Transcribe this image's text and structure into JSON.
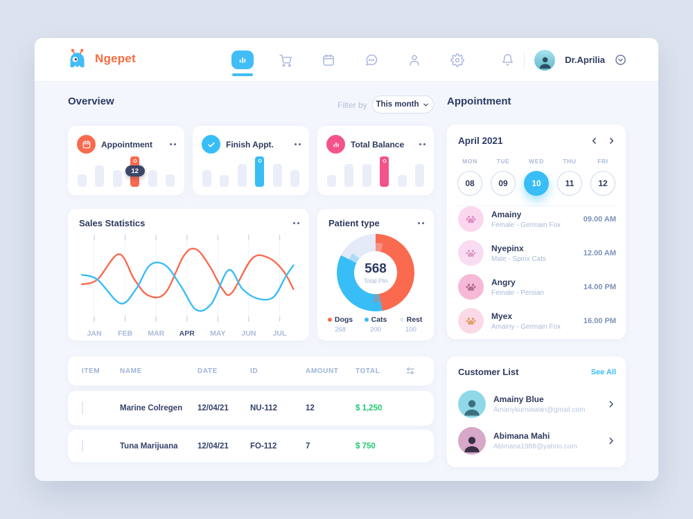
{
  "header": {
    "brand": "Ngepet",
    "nav_items": [
      {
        "name": "dashboard",
        "icon": "chart-bars",
        "active": true
      },
      {
        "name": "shop",
        "icon": "cart",
        "active": false
      },
      {
        "name": "schedule",
        "icon": "calendar",
        "active": false
      },
      {
        "name": "messages",
        "icon": "chat",
        "active": false
      },
      {
        "name": "patients",
        "icon": "user",
        "active": false
      },
      {
        "name": "settings",
        "icon": "gear",
        "active": false
      }
    ],
    "user": {
      "name": "Dr.Aprilia"
    }
  },
  "overview": {
    "title": "Overview",
    "filter_label": "Filter by",
    "filter_value": "This month"
  },
  "stat_cards": [
    {
      "title": "Appointment",
      "icon": "calendar-solid",
      "icon_bg": "#fa6a4e",
      "chart_id": "appointment-bars"
    },
    {
      "title": "Finish Appt.",
      "icon": "check",
      "icon_bg": "#38bdf6",
      "chart_id": "finish-bars"
    },
    {
      "title": "Total Balance",
      "icon": "mini-bars",
      "icon_bg": "#f4538a",
      "chart_id": "balance-bars"
    }
  ],
  "sales_card": {
    "title": "Sales Statistics"
  },
  "patient_card": {
    "title": "Patient type"
  },
  "appointment_panel": {
    "title": "Appointment",
    "month": "April 2021",
    "days": [
      {
        "dow": "MON",
        "date": "08",
        "selected": false
      },
      {
        "dow": "TUE",
        "date": "09",
        "selected": false
      },
      {
        "dow": "WED",
        "date": "10",
        "selected": true
      },
      {
        "dow": "THU",
        "date": "11",
        "selected": false
      },
      {
        "dow": "FRI",
        "date": "12",
        "selected": false
      }
    ],
    "items": [
      {
        "name": "Amainy",
        "detail": "Female - Germain Fox",
        "time": "09.00 AM",
        "avatar_bg": "#fbd7ee",
        "avatar_fg": "#e38cc0"
      },
      {
        "name": "Nyepinx",
        "detail": "Male - Spinx Cats",
        "time": "12.00 AM",
        "avatar_bg": "#f9dcf2",
        "avatar_fg": "#d9a0c6"
      },
      {
        "name": "Angry",
        "detail": "Female - Persian",
        "time": "14.00 PM",
        "avatar_bg": "#f5b8d6",
        "avatar_fg": "#b46e93"
      },
      {
        "name": "Myex",
        "detail": "Amainy - Germain Fox",
        "time": "16.00 PM",
        "avatar_bg": "#fcd9e6",
        "avatar_fg": "#e2a06b"
      }
    ]
  },
  "customer_panel": {
    "title": "Customer List",
    "action": "See All",
    "items": [
      {
        "name": "Amainy Blue",
        "email": "Amanykurniawan@gmail.com",
        "avatar_bg": "#8fd8e8",
        "avatar_fg": "#3d6f7d"
      },
      {
        "name": "Abimana Mahi",
        "email": "Abimana1988@yahoo.com",
        "avatar_bg": "#d8a8c8",
        "avatar_fg": "#3a2f45"
      }
    ]
  },
  "table": {
    "headers": [
      "ITEM",
      "NAME",
      "DATE",
      "ID",
      "AMOUNT",
      "TOTAL"
    ],
    "rows": [
      {
        "item_style": "bottle",
        "name": "Marine Colregen",
        "date": "12/04/21",
        "id": "NU-112",
        "amount": "12",
        "total": "$ 1,250"
      },
      {
        "item_style": "pouch",
        "name": "Tuna Marijuana",
        "date": "12/04/21",
        "id": "FO-112",
        "amount": "7",
        "total": "$ 750"
      }
    ]
  },
  "colors": {
    "accent_blue": "#38bdf6",
    "accent_orange": "#fa6a4e",
    "accent_pink": "#f4538a",
    "green": "#1fc96f",
    "bar_muted": "#e9eef9",
    "rest_segment": "#e4eaf8"
  },
  "chart_data": [
    {
      "id": "appointment-bars",
      "type": "bar",
      "title": "Appointment",
      "values": [
        40,
        70,
        55,
        100,
        55,
        40
      ],
      "highlight_index": 3,
      "highlight_label": "12",
      "color": "#fa6a4e",
      "ylim": [
        0,
        100
      ]
    },
    {
      "id": "finish-bars",
      "type": "bar",
      "title": "Finish Appt.",
      "values": [
        55,
        38,
        75,
        100,
        75,
        55
      ],
      "highlight_index": 3,
      "highlight_label": "",
      "color": "#38bdf6",
      "ylim": [
        0,
        100
      ]
    },
    {
      "id": "balance-bars",
      "type": "bar",
      "title": "Total Balance",
      "values": [
        38,
        75,
        75,
        100,
        38,
        75
      ],
      "highlight_index": 3,
      "highlight_label": "",
      "color": "#f4538a",
      "ylim": [
        0,
        100
      ]
    },
    {
      "id": "sales-line",
      "type": "line",
      "title": "Sales Statistics",
      "x_labels": [
        "JAN",
        "FEB",
        "MAR",
        "APR",
        "MAY",
        "JUN",
        "JUL"
      ],
      "active_label": "APR",
      "note": "decorative smoothed waves, y normalized -1..1, no y axis shown",
      "series": [
        {
          "name": "orange",
          "color": "#fa6a4e",
          "points": [
            [
              -0.4,
              -0.15
            ],
            [
              0.1,
              0
            ],
            [
              0.8,
              0.8
            ],
            [
              1.3,
              0
            ],
            [
              1.75,
              -0.5
            ],
            [
              2.3,
              -0.42
            ],
            [
              2.9,
              0.75
            ],
            [
              3.3,
              0.95
            ],
            [
              3.75,
              0.4
            ],
            [
              4.15,
              -0.3
            ],
            [
              4.45,
              -0.42
            ],
            [
              5.1,
              0.65
            ],
            [
              5.6,
              0.7
            ],
            [
              6.1,
              0.3
            ],
            [
              6.45,
              -0.3
            ]
          ]
        },
        {
          "name": "blue",
          "color": "#38bdf6",
          "points": [
            [
              -0.4,
              0.15
            ],
            [
              0.1,
              0
            ],
            [
              0.85,
              -0.75
            ],
            [
              1.35,
              -0.3
            ],
            [
              1.8,
              0.45
            ],
            [
              2.3,
              0.45
            ],
            [
              2.8,
              -0.2
            ],
            [
              3.3,
              -0.95
            ],
            [
              3.8,
              -0.75
            ],
            [
              4.35,
              0.3
            ],
            [
              4.8,
              -0.3
            ],
            [
              5.3,
              -0.6
            ],
            [
              5.8,
              -0.55
            ],
            [
              6.2,
              0.1
            ],
            [
              6.45,
              0.45
            ]
          ]
        }
      ]
    },
    {
      "id": "patient-donut",
      "type": "pie",
      "title": "Patient type",
      "labels": [
        "Dogs",
        "Cats",
        "Rest"
      ],
      "values": [
        268,
        200,
        100
      ],
      "colors": [
        "#fa6a4e",
        "#38bdf6",
        "#e4eaf8"
      ],
      "center_value": "568",
      "center_label": "Total Ptn",
      "legend_position": "bottom"
    }
  ]
}
